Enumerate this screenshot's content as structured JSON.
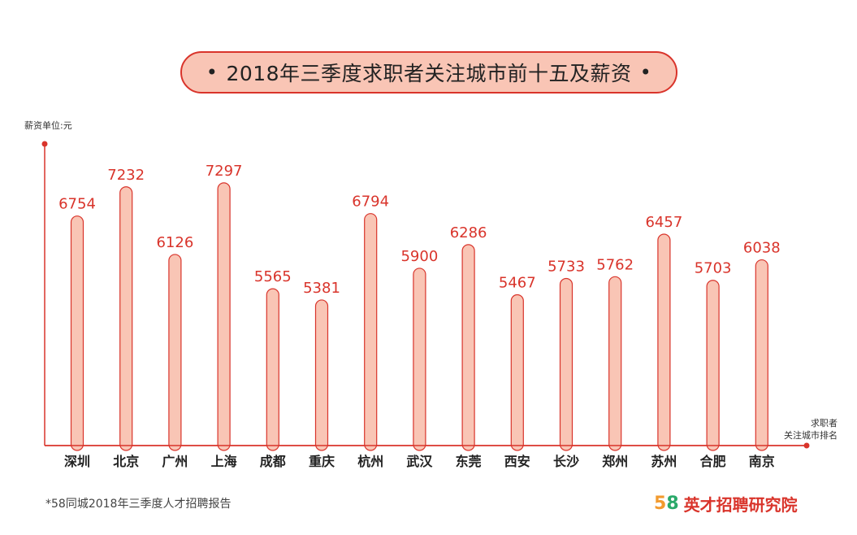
{
  "title": "2018年三季度求职者关注城市前十五及薪资",
  "title_dot": "•",
  "y_unit_label": "薪资单位:元",
  "x_unit_label_line1": "求职者",
  "x_unit_label_line2": "关注城市排名",
  "source_note": "*58同城2018年三季度人才招聘报告",
  "brand": {
    "logo_5": "5",
    "logo_8": "8",
    "name": "英才招聘研究院"
  },
  "colors": {
    "bar_fill": "#f9c5b5",
    "bar_stroke": "#d9342b",
    "axis": "#d9342b",
    "value_text": "#d9342b"
  },
  "chart_data": {
    "type": "bar",
    "categories": [
      "深圳",
      "北京",
      "广州",
      "上海",
      "成都",
      "重庆",
      "杭州",
      "武汉",
      "东莞",
      "西安",
      "长沙",
      "郑州",
      "苏州",
      "合肥",
      "南京"
    ],
    "values": [
      6754,
      7232,
      6126,
      7297,
      5565,
      5381,
      6794,
      5900,
      6286,
      5467,
      5733,
      5762,
      6457,
      5703,
      6038
    ],
    "title": "2018年三季度求职者关注城市前十五及薪资",
    "xlabel": "求职者关注城市排名",
    "ylabel": "薪资单位:元",
    "grid": false
  }
}
